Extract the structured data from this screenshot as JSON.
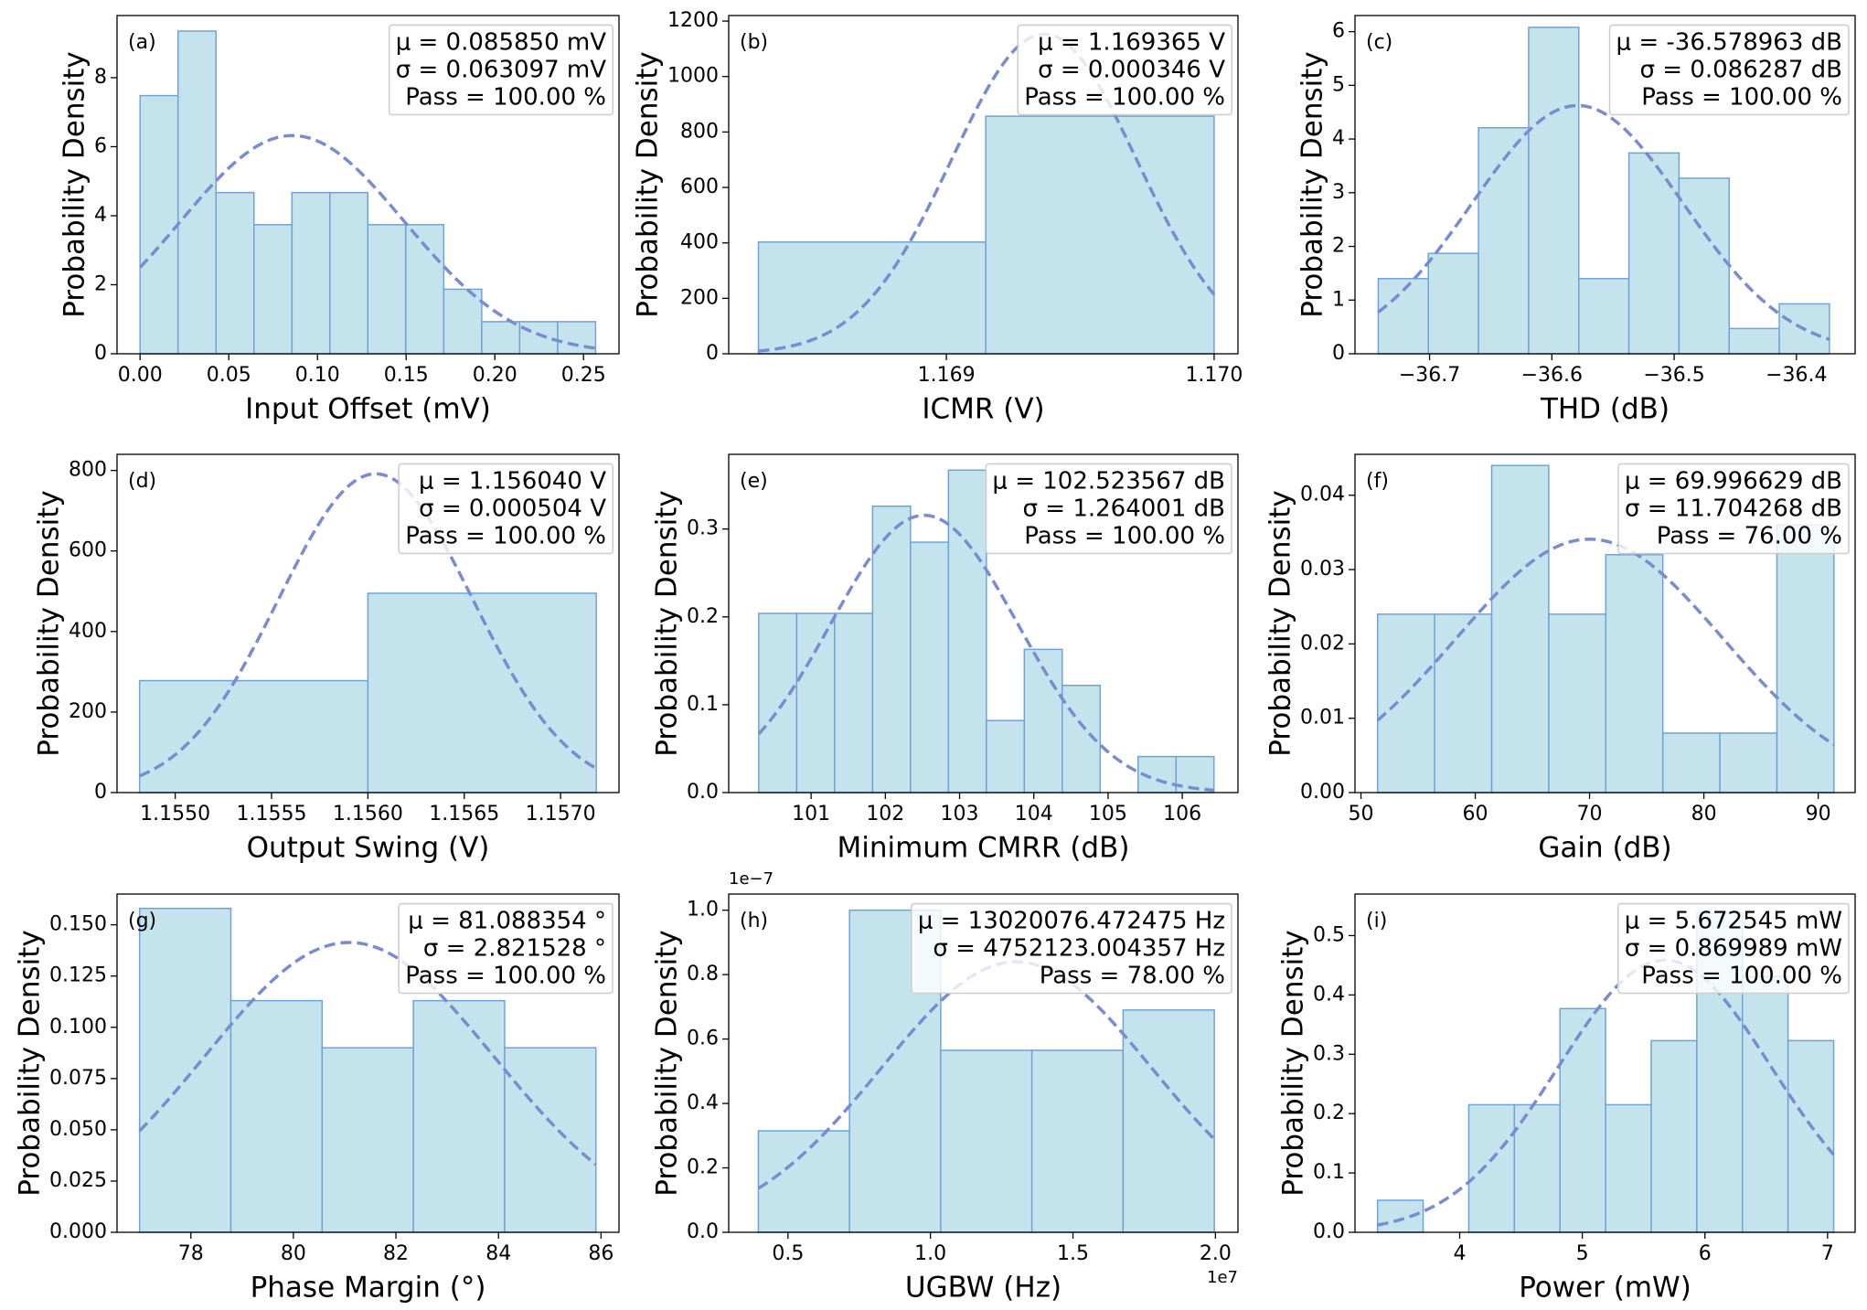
{
  "chart_data": [
    {
      "type": "histogram",
      "label": "(a)",
      "xlabel": "Input Offset (mV)",
      "ylabel": "Probability Density",
      "bins": [
        0,
        0.0214,
        0.0428,
        0.0642,
        0.0856,
        0.107,
        0.1284,
        0.1498,
        0.1712,
        0.1926,
        0.214,
        0.2354,
        0.2568
      ],
      "values": [
        7.48,
        9.35,
        4.67,
        3.74,
        4.67,
        4.67,
        3.74,
        3.74,
        1.87,
        0.93,
        0.93,
        0.93
      ],
      "xlim": [
        -0.013,
        0.27
      ],
      "ylim": [
        0,
        9.8
      ],
      "xticks": [
        {
          "value": 0,
          "label": "0.00"
        },
        {
          "value": 0.05,
          "label": "0.05"
        },
        {
          "value": 0.1,
          "label": "0.10"
        },
        {
          "value": 0.15,
          "label": "0.15"
        },
        {
          "value": 0.2,
          "label": "0.20"
        },
        {
          "value": 0.25,
          "label": "0.25"
        }
      ],
      "yticks": [
        0,
        2,
        4,
        6,
        8
      ],
      "annotation": [
        "μ = 0.085850 mV",
        "σ = 0.063097 mV",
        "Pass = 100.00 %"
      ],
      "fit": {
        "mean": 0.08585,
        "std": 0.063097
      },
      "color": "#c5e3ed",
      "edgecolor": "#6fa3d8",
      "curve_color": "#7a8ccf"
    },
    {
      "type": "histogram",
      "label": "(b)",
      "xlabel": "ICMR (V)",
      "ylabel": "Probability Density",
      "bins": [
        1.168298,
        1.169147,
        1.17
      ],
      "values": [
        403,
        857
      ],
      "xlim": [
        1.168187,
        1.170089
      ],
      "ylim": [
        0,
        1220
      ],
      "xticks": [
        {
          "value": 1.169,
          "label": "1.169"
        },
        {
          "value": 1.17,
          "label": "1.170"
        }
      ],
      "yticks": [
        0,
        200,
        400,
        600,
        800,
        1000,
        1200
      ],
      "annotation": [
        "μ = 1.169365 V",
        "σ = 0.000346 V",
        "Pass = 100.00 %"
      ],
      "fit": {
        "mean": 1.169365,
        "std": 0.000346
      },
      "color": "#c5e3ed",
      "edgecolor": "#6fa3d8",
      "curve_color": "#7a8ccf"
    },
    {
      "type": "histogram",
      "label": "(c)",
      "xlabel": "THD (dB)",
      "ylabel": "Probability Density",
      "bins": [
        -36.742,
        -36.701,
        -36.66,
        -36.619,
        -36.578,
        -36.537,
        -36.496,
        -36.455,
        -36.414,
        -36.373
      ],
      "values": [
        1.4,
        1.87,
        4.21,
        6.08,
        1.4,
        3.74,
        3.27,
        0.47,
        0.93
      ],
      "xlim": [
        -36.761,
        -36.352
      ],
      "ylim": [
        0,
        6.3
      ],
      "xticks": [
        {
          "value": -36.7,
          "label": "−36.7"
        },
        {
          "value": -36.6,
          "label": "−36.6"
        },
        {
          "value": -36.5,
          "label": "−36.5"
        },
        {
          "value": -36.4,
          "label": "−36.4"
        }
      ],
      "yticks": [
        0,
        1,
        2,
        3,
        4,
        5,
        6
      ],
      "annotation": [
        "μ = -36.578963 dB",
        "σ = 0.086287 dB",
        "Pass = 100.00 %"
      ],
      "fit": {
        "mean": -36.578963,
        "std": 0.086287
      },
      "color": "#c5e3ed",
      "edgecolor": "#6fa3d8",
      "curve_color": "#7a8ccf"
    },
    {
      "type": "histogram",
      "label": "(d)",
      "xlabel": "Output Swing (V)",
      "ylabel": "Probability Density",
      "bins": [
        1.154815,
        1.156,
        1.157185
      ],
      "values": [
        278,
        495
      ],
      "xlim": [
        1.154698,
        1.157303
      ],
      "ylim": [
        0,
        840
      ],
      "xticks": [
        {
          "value": 1.155,
          "label": "1.1550"
        },
        {
          "value": 1.1555,
          "label": "1.1555"
        },
        {
          "value": 1.156,
          "label": "1.1560"
        },
        {
          "value": 1.1565,
          "label": "1.1565"
        },
        {
          "value": 1.157,
          "label": "1.1570"
        }
      ],
      "yticks": [
        0,
        200,
        400,
        600,
        800
      ],
      "annotation": [
        "μ = 1.156040 V",
        "σ = 0.000504 V",
        "Pass = 100.00 %"
      ],
      "fit": {
        "mean": 1.15604,
        "std": 0.000504
      },
      "color": "#c5e3ed",
      "edgecolor": "#6fa3d8",
      "curve_color": "#7a8ccf"
    },
    {
      "type": "histogram",
      "label": "(e)",
      "xlabel": "Minimum CMRR (dB)",
      "ylabel": "Probability Density",
      "bins": [
        100.295,
        100.806,
        101.317,
        101.828,
        102.339,
        102.85,
        103.361,
        103.872,
        104.383,
        104.894,
        105.405,
        105.916,
        106.427
      ],
      "values": [
        0.204,
        0.204,
        0.204,
        0.326,
        0.285,
        0.367,
        0.082,
        0.163,
        0.122,
        0,
        0.041,
        0.041
      ],
      "xlim": [
        99.89,
        106.75
      ],
      "ylim": [
        0,
        0.385
      ],
      "xticks": [
        101,
        102,
        103,
        104,
        105,
        106
      ],
      "yticks": [
        {
          "value": 0,
          "label": "0.0"
        },
        {
          "value": 0.1,
          "label": "0.1"
        },
        {
          "value": 0.2,
          "label": "0.2"
        },
        {
          "value": 0.3,
          "label": "0.3"
        }
      ],
      "annotation": [
        "μ = 102.523567 dB",
        "σ = 1.264001 dB",
        "Pass = 100.00 %"
      ],
      "fit": {
        "mean": 102.523567,
        "std": 1.264001
      },
      "color": "#c5e3ed",
      "edgecolor": "#6fa3d8",
      "curve_color": "#7a8ccf"
    },
    {
      "type": "histogram",
      "label": "(f)",
      "xlabel": "Gain (dB)",
      "ylabel": "Probability Density",
      "bins": [
        51.46,
        56.45,
        61.44,
        66.43,
        71.42,
        76.41,
        81.4,
        86.39,
        91.38
      ],
      "values": [
        0.024,
        0.024,
        0.044,
        0.024,
        0.032,
        0.008,
        0.008,
        0.036
      ],
      "xlim": [
        49.48,
        93.23
      ],
      "ylim": [
        0,
        0.0455
      ],
      "xticks": [
        50,
        60,
        70,
        80,
        90
      ],
      "yticks": [
        {
          "value": 0,
          "label": "0.00"
        },
        {
          "value": 0.01,
          "label": "0.01"
        },
        {
          "value": 0.02,
          "label": "0.02"
        },
        {
          "value": 0.03,
          "label": "0.03"
        },
        {
          "value": 0.04,
          "label": "0.04"
        }
      ],
      "annotation": [
        "μ = 69.996629 dB",
        "σ = 11.704268 dB",
        "Pass = 76.00 %"
      ],
      "fit": {
        "mean": 69.996629,
        "std": 11.704268
      },
      "color": "#c5e3ed",
      "edgecolor": "#6fa3d8",
      "curve_color": "#7a8ccf"
    },
    {
      "type": "histogram",
      "label": "(g)",
      "xlabel": "Phase Margin (°)",
      "ylabel": "Probability Density",
      "bins": [
        77.0,
        78.78,
        80.56,
        82.34,
        84.12,
        85.9
      ],
      "values": [
        0.158,
        0.113,
        0.09,
        0.113,
        0.09
      ],
      "xlim": [
        76.56,
        86.35
      ],
      "ylim": [
        0,
        0.165
      ],
      "xticks": [
        78,
        80,
        82,
        84,
        86
      ],
      "yticks": [
        {
          "value": 0,
          "label": "0.000"
        },
        {
          "value": 0.025,
          "label": "0.025"
        },
        {
          "value": 0.05,
          "label": "0.050"
        },
        {
          "value": 0.075,
          "label": "0.075"
        },
        {
          "value": 0.1,
          "label": "0.100"
        },
        {
          "value": 0.125,
          "label": "0.125"
        },
        {
          "value": 0.15,
          "label": "0.150"
        }
      ],
      "annotation": [
        "μ = 81.088354 °",
        "σ = 2.821528 °",
        "Pass = 100.00 %"
      ],
      "fit": {
        "mean": 81.088354,
        "std": 2.821528
      },
      "color": "#c5e3ed",
      "edgecolor": "#6fa3d8",
      "curve_color": "#7a8ccf"
    },
    {
      "type": "histogram",
      "label": "(h)",
      "xlabel": "UGBW (Hz)",
      "ylabel": "Probability Density",
      "bins": [
        3960000,
        7160000,
        10360000,
        13560000,
        16760000,
        19960000
      ],
      "values": [
        3.15e-08,
        1e-07,
        5.65e-08,
        5.65e-08,
        6.9e-08
      ],
      "xlim": [
        2920000,
        20790000
      ],
      "ylim": [
        0,
        1.05e-07
      ],
      "xticks": [
        {
          "value": 5000000,
          "label": "0.5"
        },
        {
          "value": 10000000,
          "label": "1.0"
        },
        {
          "value": 15000000,
          "label": "1.5"
        },
        {
          "value": 20000000,
          "label": "2.0"
        }
      ],
      "yticks": [
        {
          "value": 0,
          "label": "0.0"
        },
        {
          "value": 2e-08,
          "label": "0.2"
        },
        {
          "value": 4e-08,
          "label": "0.4"
        },
        {
          "value": 6e-08,
          "label": "0.6"
        },
        {
          "value": 8e-08,
          "label": "0.8"
        },
        {
          "value": 1e-07,
          "label": "1.0"
        }
      ],
      "x_offset_label": "1e7",
      "y_offset_label": "1e−7",
      "annotation": [
        "μ = 13020076.472475 Hz",
        "σ = 4752123.004357 Hz",
        "Pass = 78.00 %"
      ],
      "fit": {
        "mean": 13020076.472475,
        "std": 4752123.004357
      },
      "color": "#c5e3ed",
      "edgecolor": "#6fa3d8",
      "curve_color": "#7a8ccf"
    },
    {
      "type": "histogram",
      "label": "(i)",
      "xlabel": "Power (mW)",
      "ylabel": "Probability Density",
      "bins": [
        3.33,
        3.702,
        4.074,
        4.446,
        4.818,
        5.19,
        5.562,
        5.934,
        6.306,
        6.678,
        7.05
      ],
      "values": [
        0.054,
        0,
        0.215,
        0.215,
        0.377,
        0.215,
        0.323,
        0.538,
        0.431,
        0.323
      ],
      "xlim": [
        3.146,
        7.225
      ],
      "ylim": [
        0,
        0.57
      ],
      "xticks": [
        4,
        5,
        6,
        7
      ],
      "yticks": [
        {
          "value": 0,
          "label": "0.0"
        },
        {
          "value": 0.1,
          "label": "0.1"
        },
        {
          "value": 0.2,
          "label": "0.2"
        },
        {
          "value": 0.3,
          "label": "0.3"
        },
        {
          "value": 0.4,
          "label": "0.4"
        },
        {
          "value": 0.5,
          "label": "0.5"
        }
      ],
      "annotation": [
        "μ = 5.672545 mW",
        "σ = 0.869989 mW",
        "Pass = 100.00 %"
      ],
      "fit": {
        "mean": 5.672545,
        "std": 0.869989
      },
      "color": "#c5e3ed",
      "edgecolor": "#6fa3d8",
      "curve_color": "#7a8ccf"
    }
  ]
}
